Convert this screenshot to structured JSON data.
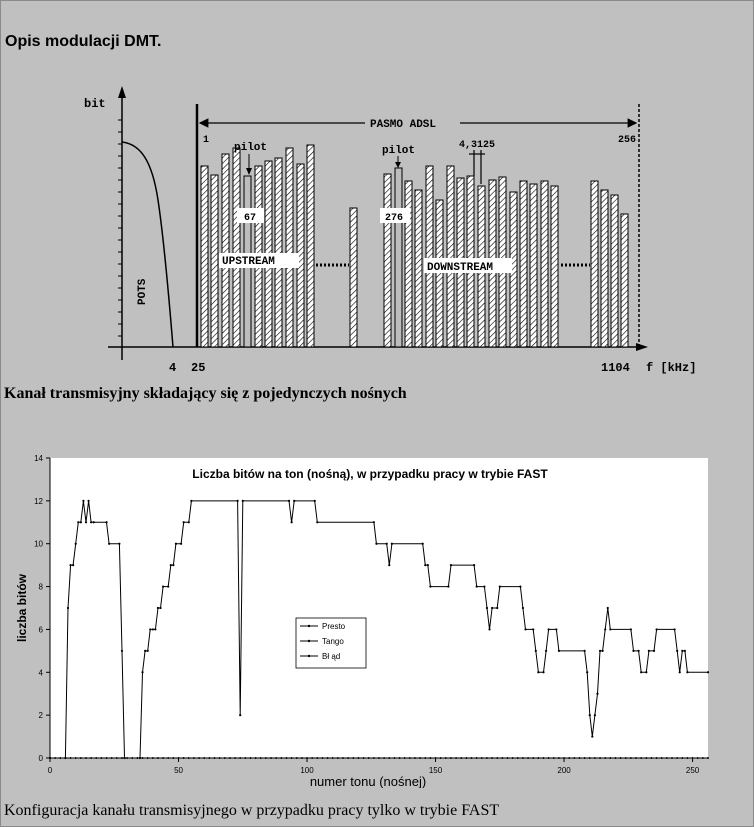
{
  "heading": "Opis modulacji DMT.",
  "diagram": {
    "y_axis_label": "bit",
    "band_label": "PASMO ADSL",
    "band_start_label": "1",
    "band_end_label": "256",
    "pilot_label_left": "pilot",
    "pilot_label_right": "pilot",
    "spacing_label": "4,3125",
    "tone_67": "67",
    "tone_276": "276",
    "pots_label": "POTS",
    "upstream_label": "UPSTREAM",
    "downstream_label": "DOWNSTREAM",
    "tick_4": "4",
    "tick_25": "25",
    "tick_1104": "1104",
    "x_axis_label": "f [kHz]"
  },
  "caption_1": "Kanał transmisyjny składający się z pojedynczych nośnych",
  "chart_data": {
    "type": "line",
    "title": "Liczba bitów na ton (nośną), w przypadku pracy w trybie FAST",
    "xlabel": "numer tonu (nośnej)",
    "ylabel": "liczba bitów",
    "xlim": [
      0,
      256
    ],
    "ylim": [
      0,
      14
    ],
    "xticks": [
      "0",
      "50",
      "100",
      "150",
      "200",
      "250"
    ],
    "yticks": [
      "0",
      "2",
      "4",
      "6",
      "8",
      "10",
      "12",
      "14"
    ],
    "legend_position": "center-left",
    "series": [
      {
        "name": "Presto",
        "points": [
          [
            0,
            0
          ],
          [
            6,
            0
          ],
          [
            7,
            7
          ],
          [
            8,
            9
          ],
          [
            9,
            9
          ],
          [
            10,
            10
          ],
          [
            11,
            11
          ],
          [
            12,
            11
          ],
          [
            13,
            12
          ],
          [
            14,
            11
          ],
          [
            15,
            12
          ],
          [
            16,
            11
          ],
          [
            17,
            11
          ],
          [
            22,
            11
          ],
          [
            23,
            10
          ],
          [
            27,
            10
          ],
          [
            28,
            5
          ],
          [
            29,
            0
          ],
          [
            35,
            0
          ],
          [
            36,
            4
          ],
          [
            37,
            5
          ],
          [
            38,
            5
          ],
          [
            39,
            6
          ],
          [
            40,
            6
          ],
          [
            41,
            6
          ],
          [
            42,
            7
          ],
          [
            43,
            7
          ],
          [
            44,
            8
          ],
          [
            46,
            8
          ],
          [
            47,
            9
          ],
          [
            48,
            9
          ],
          [
            49,
            10
          ],
          [
            51,
            10
          ],
          [
            52,
            11
          ],
          [
            54,
            11
          ],
          [
            55,
            12
          ],
          [
            73,
            12
          ],
          [
            74,
            2
          ],
          [
            75,
            12
          ],
          [
            93,
            12
          ],
          [
            94,
            11
          ],
          [
            95,
            12
          ],
          [
            103,
            12
          ],
          [
            104,
            11
          ],
          [
            126,
            11
          ],
          [
            127,
            10
          ],
          [
            131,
            10
          ],
          [
            132,
            9
          ],
          [
            133,
            10
          ],
          [
            145,
            10
          ],
          [
            146,
            9
          ],
          [
            147,
            9
          ],
          [
            148,
            8
          ],
          [
            155,
            8
          ],
          [
            156,
            9
          ],
          [
            165,
            9
          ],
          [
            166,
            8
          ],
          [
            169,
            8
          ],
          [
            170,
            7
          ],
          [
            171,
            6
          ],
          [
            172,
            7
          ],
          [
            174,
            7
          ],
          [
            175,
            8
          ],
          [
            183,
            8
          ],
          [
            184,
            7
          ],
          [
            185,
            6
          ],
          [
            188,
            6
          ],
          [
            189,
            5
          ],
          [
            190,
            4
          ],
          [
            192,
            4
          ],
          [
            193,
            5
          ],
          [
            194,
            6
          ],
          [
            197,
            6
          ],
          [
            198,
            5
          ],
          [
            208,
            5
          ],
          [
            209,
            4
          ],
          [
            210,
            2
          ],
          [
            211,
            1
          ],
          [
            212,
            2
          ],
          [
            213,
            3
          ],
          [
            214,
            5
          ],
          [
            215,
            5
          ],
          [
            216,
            6
          ],
          [
            217,
            7
          ],
          [
            218,
            6
          ],
          [
            226,
            6
          ],
          [
            227,
            5
          ],
          [
            229,
            5
          ],
          [
            230,
            4
          ],
          [
            232,
            4
          ],
          [
            233,
            5
          ],
          [
            235,
            5
          ],
          [
            236,
            6
          ],
          [
            243,
            6
          ],
          [
            244,
            5
          ],
          [
            245,
            4
          ],
          [
            246,
            5
          ],
          [
            247,
            5
          ],
          [
            248,
            4
          ],
          [
            256,
            4
          ]
        ]
      },
      {
        "name": "Tango",
        "points": [
          [
            0,
            0
          ],
          [
            256,
            0
          ]
        ]
      },
      {
        "name": "Bł ąd",
        "points": [
          [
            0,
            0
          ],
          [
            256,
            0
          ]
        ]
      }
    ]
  },
  "caption_2": "Konfiguracja kanału transmisyjnego w przypadku pracy tylko w trybie FAST"
}
